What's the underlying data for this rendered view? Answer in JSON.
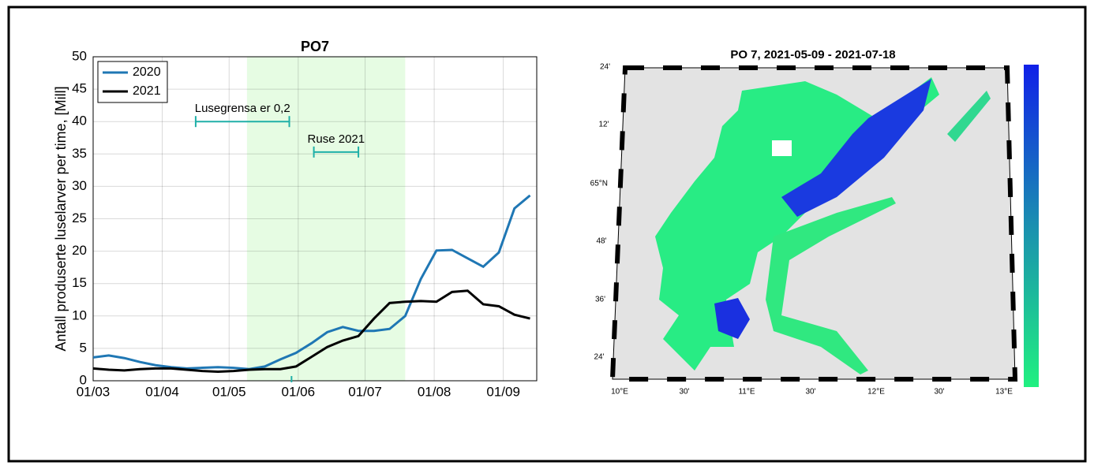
{
  "chart_data": {
    "type": "line",
    "title": "PO7",
    "ylabel": "Antall produserte luselarver per time, [Mill]",
    "x": [
      0,
      7,
      14,
      21,
      28,
      35,
      42,
      49,
      56,
      63,
      70,
      77,
      84,
      91,
      98,
      105,
      112,
      119,
      126,
      133,
      140,
      147,
      154,
      161,
      168,
      175,
      182,
      189,
      196
    ],
    "xlim": [
      0,
      199
    ],
    "xticks": [
      {
        "value": 0,
        "label": "01/03"
      },
      {
        "value": 31,
        "label": "01/04"
      },
      {
        "value": 61,
        "label": "01/05"
      },
      {
        "value": 92,
        "label": "01/06"
      },
      {
        "value": 122,
        "label": "01/07"
      },
      {
        "value": 153,
        "label": "01/08"
      },
      {
        "value": 184,
        "label": "01/09"
      }
    ],
    "ylim": [
      0,
      50
    ],
    "yticks": [
      0,
      5,
      10,
      15,
      20,
      25,
      30,
      35,
      40,
      45,
      50
    ],
    "grid": true,
    "legend": "upper left",
    "series": [
      {
        "name": "2020",
        "color": "#1f77b4",
        "values": [
          3.6,
          3.9,
          3.5,
          2.9,
          2.4,
          2.1,
          1.9,
          2.0,
          2.1,
          2.0,
          1.8,
          2.2,
          3.3,
          4.3,
          5.8,
          7.5,
          8.3,
          7.7,
          7.7,
          8.0,
          10.0,
          15.7,
          20.1,
          20.2,
          18.9,
          17.6,
          19.8,
          26.6,
          28.6
        ]
      },
      {
        "name": "2021",
        "color": "#000000",
        "values": [
          1.9,
          1.7,
          1.6,
          1.8,
          1.9,
          1.9,
          1.7,
          1.5,
          1.4,
          1.5,
          1.7,
          1.8,
          1.8,
          2.2,
          3.7,
          5.2,
          6.2,
          6.9,
          9.6,
          12.0,
          12.2,
          12.3,
          12.2,
          13.7,
          13.9,
          11.8,
          11.5,
          10.2,
          9.6
        ]
      }
    ],
    "shaded_range": [
      69,
      140
    ],
    "marker_x": 89,
    "annotations": [
      {
        "text": "Lusegrensa er 0,2",
        "x": [
          46,
          88
        ],
        "y": 40
      },
      {
        "text": "Ruse 2021",
        "x": [
          99,
          119
        ],
        "y": 35.3
      }
    ]
  },
  "map": {
    "title": "PO 7, 2021-05-09 - 2021-07-18",
    "lat_labels": [
      "24'",
      "12'",
      "65°N",
      "48'",
      "36'",
      "24'"
    ],
    "lon_labels": [
      "10°E",
      "30'",
      "11°E",
      "30'",
      "12°E",
      "30'",
      "13°E"
    ]
  }
}
